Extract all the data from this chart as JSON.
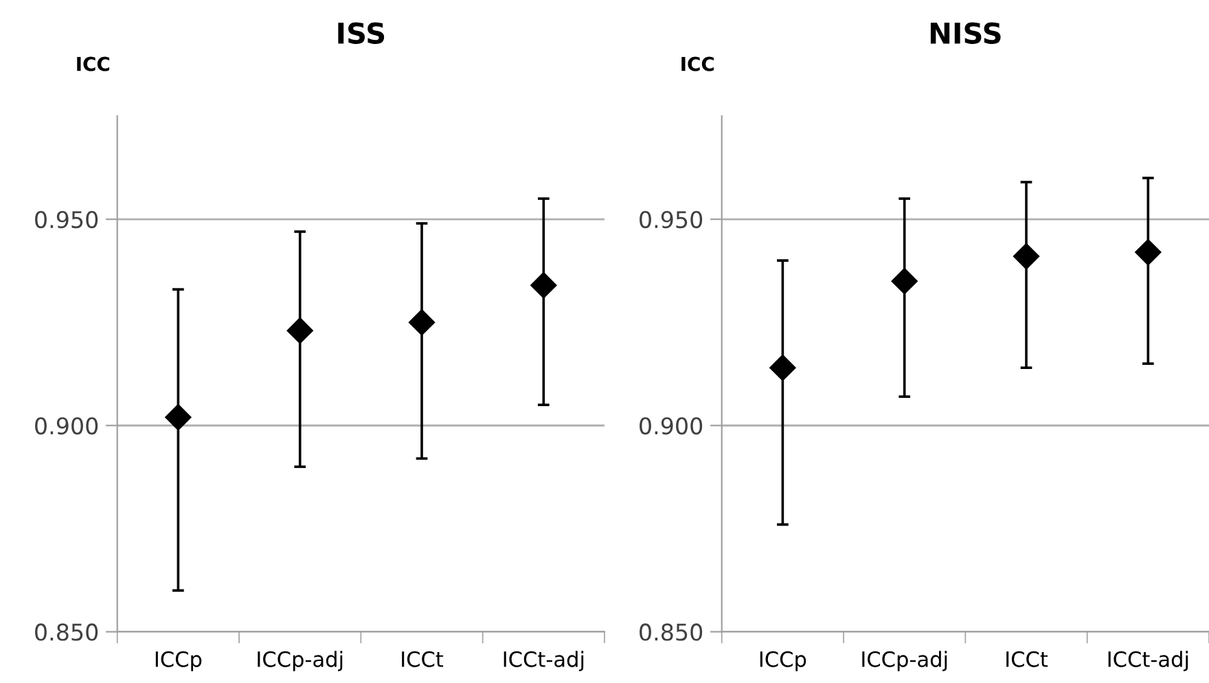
{
  "chart_data": [
    {
      "type": "scatter",
      "title": "ISS",
      "ylabel": "ICC",
      "categories": [
        "ICCp",
        "ICCp-adj",
        "ICCt",
        "ICCt-adj"
      ],
      "marker": "diamond",
      "grid": "y",
      "ylim": [
        0.85,
        0.975
      ],
      "yticks": [
        {
          "value": 0.85,
          "label": "0.850"
        },
        {
          "value": 0.9,
          "label": "0.900"
        },
        {
          "value": 0.95,
          "label": "0.950"
        }
      ],
      "series": [
        {
          "color": "#000000",
          "values": [
            0.902,
            0.923,
            0.925,
            0.934
          ],
          "errors": [
            [
              0.86,
              0.933
            ],
            [
              0.89,
              0.947
            ],
            [
              0.892,
              0.949
            ],
            [
              0.905,
              0.955
            ]
          ]
        }
      ]
    },
    {
      "type": "scatter",
      "title": "NISS",
      "ylabel": "ICC",
      "categories": [
        "ICCp",
        "ICCp-adj",
        "ICCt",
        "ICCt-adj"
      ],
      "marker": "diamond",
      "grid": "y",
      "ylim": [
        0.85,
        0.975
      ],
      "yticks": [
        {
          "value": 0.85,
          "label": "0.850"
        },
        {
          "value": 0.9,
          "label": "0.900"
        },
        {
          "value": 0.95,
          "label": "0.950"
        }
      ],
      "series": [
        {
          "color": "#000000",
          "values": [
            0.914,
            0.935,
            0.941,
            0.942
          ],
          "errors": [
            [
              0.876,
              0.94
            ],
            [
              0.907,
              0.955
            ],
            [
              0.914,
              0.959
            ],
            [
              0.915,
              0.96
            ]
          ]
        }
      ]
    }
  ]
}
